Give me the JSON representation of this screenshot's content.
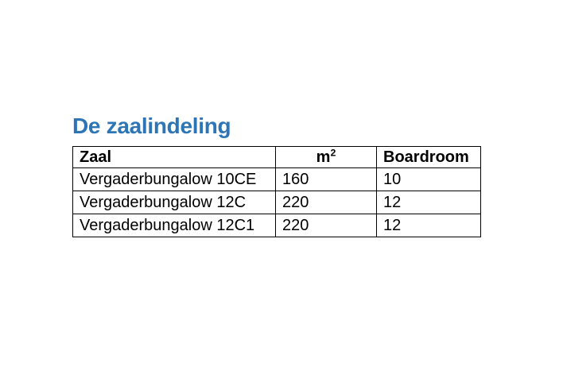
{
  "page": {
    "title": "De zaalindeling",
    "title_color": "#2E75B6",
    "background_color": "#FFFFFF"
  },
  "table": {
    "border_color": "#000000",
    "columns": [
      {
        "label": "Zaal",
        "align": "left"
      },
      {
        "label": "m",
        "superscript": "2",
        "align": "center"
      },
      {
        "label": "Boardroom",
        "align": "left"
      }
    ],
    "rows": [
      [
        "Vergaderbungalow 10CE",
        "160",
        "10"
      ],
      [
        "Vergaderbungalow 12C",
        "220",
        "12"
      ],
      [
        "Vergaderbungalow 12C1",
        "220",
        "12"
      ]
    ]
  }
}
